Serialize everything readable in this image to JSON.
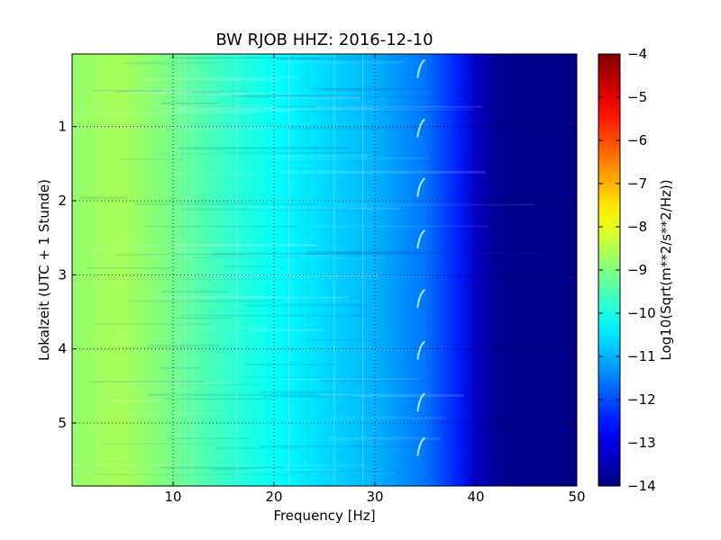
{
  "chart_data": {
    "type": "heatmap",
    "title": "BW RJOB HHZ: 2016-12-10",
    "xlabel": "Frequency [Hz]",
    "ylabel": "Lokalzeit (UTC + 1 Stunde)",
    "xlim": [
      0,
      50
    ],
    "ylim": [
      5.85,
      0.02
    ],
    "xticks": [
      10,
      20,
      30,
      40,
      50
    ],
    "yticks": [
      1,
      2,
      3,
      4,
      5
    ],
    "grid": true,
    "colorbar": {
      "label": "Log10(Sqrt(m**2/s**2/Hz))",
      "min": -14,
      "max": -4,
      "ticks": [
        -4,
        -5,
        -6,
        -7,
        -8,
        -9,
        -10,
        -11,
        -12,
        -13,
        -14
      ],
      "colormap": "jet"
    },
    "spectrum_profile": {
      "frequency_hz": [
        0,
        5,
        10,
        15,
        20,
        25,
        30,
        35,
        38,
        40,
        42,
        45,
        50
      ],
      "log10_amplitude": [
        -8.8,
        -8.6,
        -9.1,
        -9.7,
        -10.2,
        -10.6,
        -11.0,
        -11.6,
        -12.4,
        -13.3,
        -13.8,
        -13.9,
        -13.9
      ]
    },
    "features": [
      {
        "type": "recurring_line",
        "frequency_hz": 34.5,
        "times_h": [
          0.1,
          0.9,
          1.7,
          2.4,
          3.2,
          3.9,
          4.6,
          5.2
        ]
      },
      {
        "type": "vertical_lines",
        "frequency_hz": [
          10.5,
          11.2,
          12.0,
          16.3,
          21.5,
          26.0,
          28.8
        ]
      }
    ]
  }
}
